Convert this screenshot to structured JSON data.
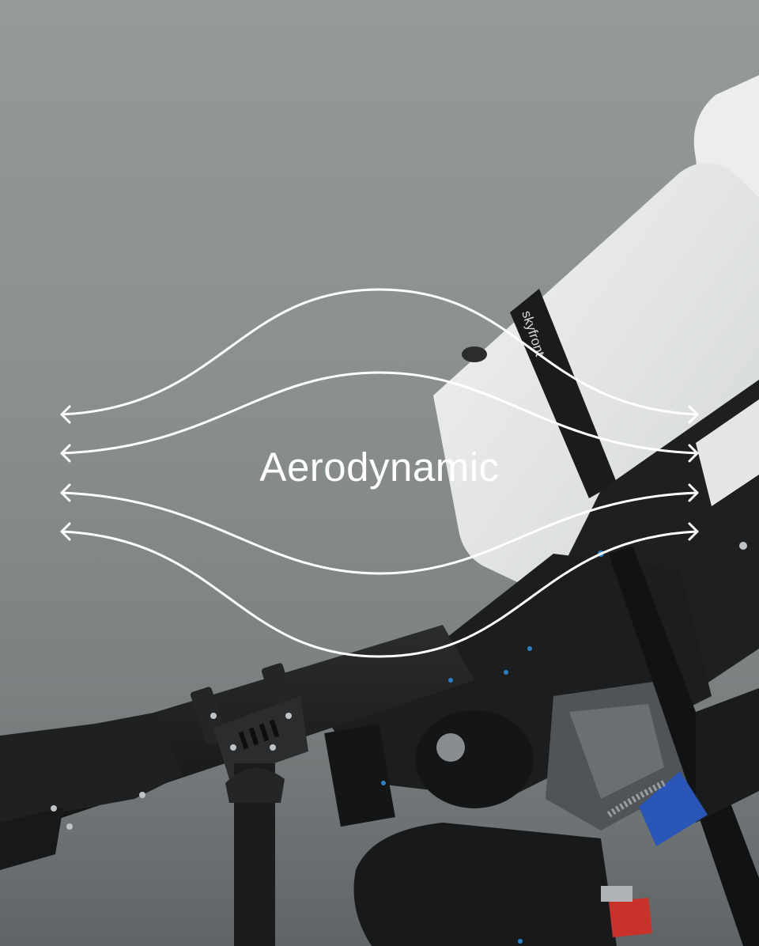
{
  "headline": {
    "text": "Aerodynamic"
  },
  "product": {
    "strap_brand_text": "skyfront"
  },
  "colors": {
    "background_top": "#959a99",
    "background_bottom": "#5f6466",
    "tank": "#e6e8e8",
    "frame": "#1c1e20",
    "arrows": "#ffffff",
    "clamp_blue": "#2a56b8",
    "fitting_red": "#c8322a"
  },
  "icons": [
    "double-headed-arrow-icon"
  ]
}
